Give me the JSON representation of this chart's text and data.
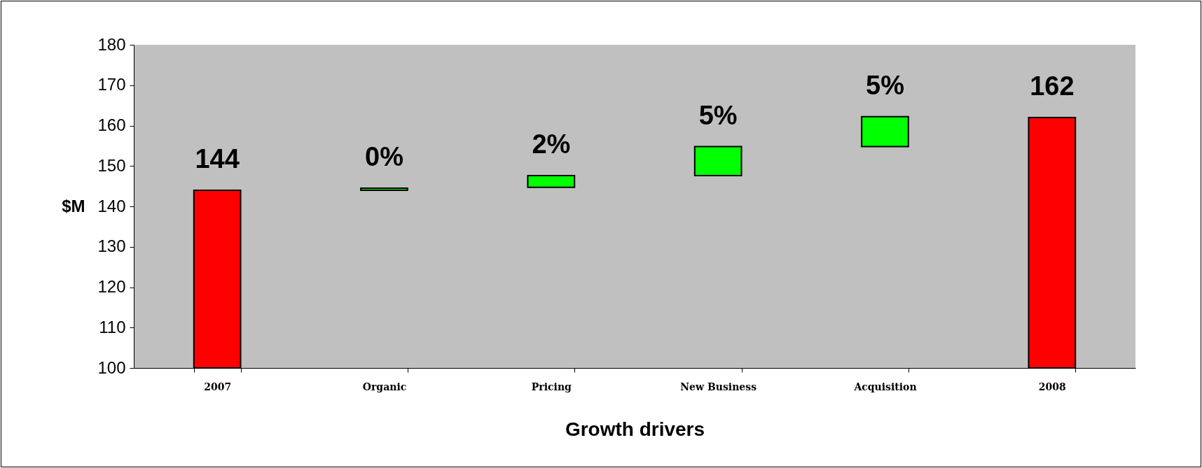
{
  "chart_data": {
    "type": "bar",
    "xlabel": "Growth drivers",
    "ylabel": "$M",
    "categories": [
      "2007",
      "Organic",
      "Pricing",
      "New Business",
      "Acquisition",
      "2008"
    ],
    "base": [
      100,
      144,
      144.7,
      147.6,
      154.8,
      100
    ],
    "values": [
      44,
      0.5,
      2.9,
      7.2,
      7.4,
      62
    ],
    "colors": [
      "#ff0000",
      "#00ff00",
      "#00ff00",
      "#00ff00",
      "#00ff00",
      "#ff0000"
    ],
    "annotations": [
      {
        "text": "144",
        "x": "2007",
        "y": 144
      },
      {
        "text": "0%",
        "x": "Organic",
        "y": 144.5
      },
      {
        "text": "2%",
        "x": "Pricing",
        "y": 147.6
      },
      {
        "text": "5%",
        "x": "New Business",
        "y": 154.8
      },
      {
        "text": "5%",
        "x": "Acquisition",
        "y": 162.2
      },
      {
        "text": "162",
        "x": "2008",
        "y": 162
      }
    ],
    "ylim": [
      100,
      180
    ],
    "yticks": [
      100,
      110,
      120,
      130,
      140,
      150,
      160,
      170,
      180
    ],
    "grid": false
  }
}
